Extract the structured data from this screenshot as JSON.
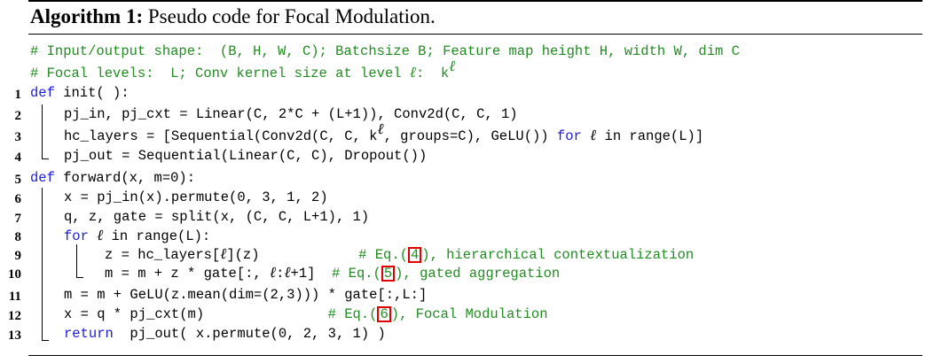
{
  "caption": {
    "label": "Algorithm 1:",
    "text": " Pseudo code for Focal Modulation."
  },
  "comments": {
    "c1": "# Input/output shape:  (B, H, W, C); Batchsize B; Feature map height H, width W, dim C",
    "c2a": "# Focal levels:  L; Conv kernel size at level ",
    "c2b": ":  k"
  },
  "symbols": {
    "ell": "ℓ"
  },
  "lines": [
    {
      "num": "1",
      "a": "def",
      "b": " init( ):"
    },
    {
      "num": "2",
      "a": "pj_in, pj_cxt = Linear(C, 2*C + (L+1)), Conv2d(C, C, 1)"
    },
    {
      "num": "3",
      "a": "hc_layers = [Sequential(Conv2d(C, C, k",
      "b": ", groups=C), GeLU()) ",
      "c": "for",
      "d": " in range(L)]"
    },
    {
      "num": "4",
      "a": "pj_out = Sequential(Linear(C, C), Dropout())"
    },
    {
      "num": "5",
      "a": "def",
      "b": " forward(x, m=0):"
    },
    {
      "num": "6",
      "a": "x = pj_in(x).permute(0, 3, 1, 2)"
    },
    {
      "num": "7",
      "a": "q, z, gate = split(x, (C, C, L+1), 1)"
    },
    {
      "num": "8",
      "a": "for",
      "b": " in range(L):"
    },
    {
      "num": "9",
      "a": "z = hc_layers[",
      "b": "](z)            ",
      "c": "# Eq.(",
      "d": "4",
      "e": "), hierarchical contextualization"
    },
    {
      "num": "10",
      "a": "m = m + z * gate[:, ",
      "b": ":",
      "c": "+1]  ",
      "d": "# Eq.(",
      "e": "5",
      "f": "), gated aggregation"
    },
    {
      "num": "11",
      "a": "m = m + GeLU(z.mean(dim=(2,3))) * gate[:,L:]"
    },
    {
      "num": "12",
      "a": "x = q * pj_cxt(m)               ",
      "b": "# Eq.(",
      "c": "6",
      "d": "), Focal Modulation"
    },
    {
      "num": "13",
      "a": "return",
      "b": "  pj_out( x.permute(0, 2, 3, 1) )"
    }
  ]
}
